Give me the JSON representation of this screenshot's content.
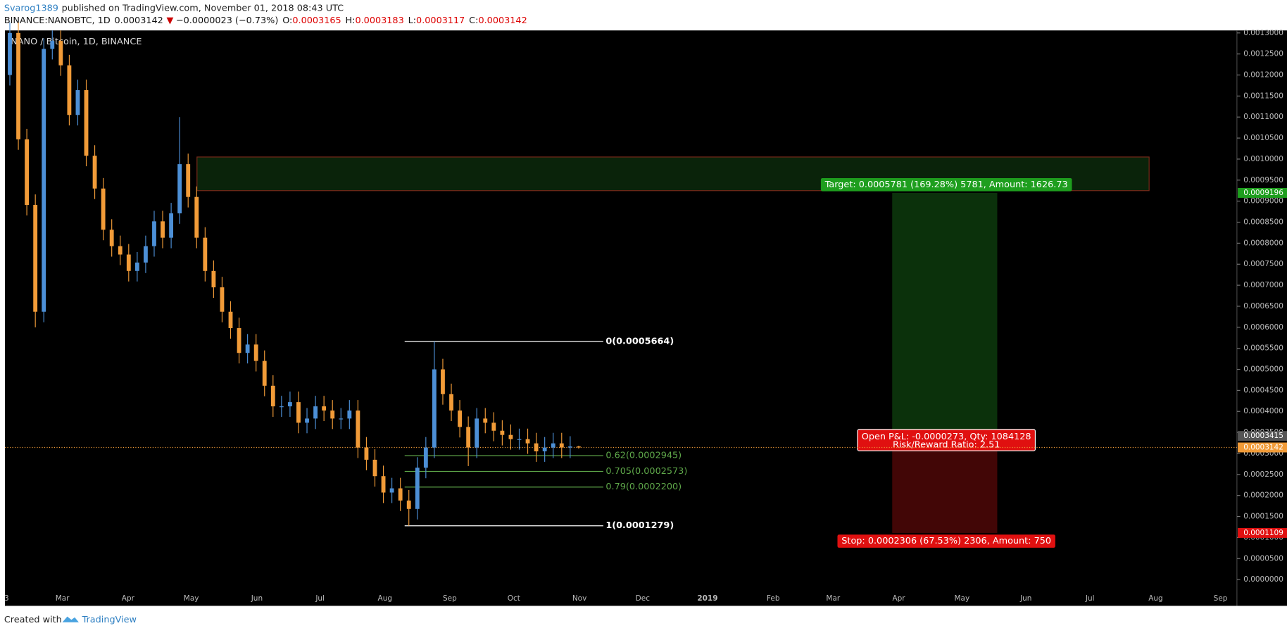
{
  "header": {
    "author": "Svarog1389",
    "published": "published on TradingView.com, November 01, 2018 08:43 UTC",
    "symbol": "BINANCE:NANOBTC, 1D",
    "last": "0.0003142",
    "change": "−0.0000023 (−0.73%)",
    "ohlc": [
      {
        "key": "O:",
        "value": "0.0003165"
      },
      {
        "key": "H:",
        "value": "0.0003183"
      },
      {
        "key": "L:",
        "value": "0.0003117"
      },
      {
        "key": "C:",
        "value": "0.0003142"
      }
    ]
  },
  "chart_data": {
    "type": "candlestick",
    "title": "NANO / Bitcoin, 1D, BINANCE",
    "up_color": "#4c8fd6",
    "down_color": "#f19b38",
    "candles": {
      "open": [
        0.0012,
        0.0013,
        0.001047,
        0.000891,
        0.000637,
        0.001262,
        0.001281,
        0.001223,
        0.001105,
        0.001164,
        0.001008,
        0.00093,
        0.000832,
        0.000793,
        0.000773,
        0.000734,
        0.000754,
        0.000793,
        0.000852,
        0.000813,
        0.000871,
        0.000988,
        0.00091,
        0.000813,
        0.000734,
        0.000695,
        0.000637,
        0.000598,
        0.000539,
        0.000559,
        0.00052,
        0.000461,
        0.000412,
        0.000412,
        0.000422,
        0.000373,
        0.000383,
        0.000412,
        0.000402,
        0.000383,
        0.000383,
        0.000402,
        0.000314,
        0.000285,
        0.000246,
        0.000207,
        0.000217,
        0.000188,
        0.000168,
        0.000266,
        0.000314,
        0.0005,
        0.000441,
        0.000402,
        0.000363,
        0.000314,
        0.000383,
        0.000373,
        0.000354,
        0.000344,
        0.000334,
        0.000334,
        0.000324,
        0.000305,
        0.000314,
        0.000324,
        0.000314,
        0.0003165
      ],
      "high": [
        0.001325,
        0.001325,
        0.001072,
        0.000916,
        0.001287,
        0.001306,
        0.001306,
        0.001248,
        0.001189,
        0.001189,
        0.001033,
        0.000955,
        0.000857,
        0.000818,
        0.000798,
        0.000779,
        0.000818,
        0.000877,
        0.000877,
        0.000896,
        0.0011,
        0.001013,
        0.000935,
        0.000838,
        0.000759,
        0.00072,
        0.000662,
        0.000623,
        0.000584,
        0.000584,
        0.000545,
        0.000486,
        0.000437,
        0.000447,
        0.000447,
        0.000408,
        0.000437,
        0.000437,
        0.000427,
        0.000408,
        0.000427,
        0.000427,
        0.000339,
        0.00031,
        0.000271,
        0.000242,
        0.000242,
        0.000213,
        0.000291,
        0.000339,
        0.0005664,
        0.000525,
        0.000466,
        0.000427,
        0.000388,
        0.000408,
        0.000408,
        0.000398,
        0.000379,
        0.000369,
        0.000359,
        0.000359,
        0.000349,
        0.000339,
        0.000349,
        0.000349,
        0.000341,
        0.0003183
      ],
      "low": [
        0.001175,
        0.001022,
        0.000866,
        0.0006,
        0.000612,
        0.001237,
        0.001198,
        0.00108,
        0.00108,
        0.000983,
        0.000905,
        0.000807,
        0.000768,
        0.000748,
        0.000709,
        0.000709,
        0.000729,
        0.000768,
        0.000788,
        0.000788,
        0.000846,
        0.000885,
        0.000788,
        0.000709,
        0.00067,
        0.000612,
        0.000573,
        0.000514,
        0.000514,
        0.000495,
        0.000436,
        0.000387,
        0.000387,
        0.000387,
        0.000348,
        0.000348,
        0.000358,
        0.000377,
        0.000358,
        0.000358,
        0.000358,
        0.000289,
        0.00026,
        0.000221,
        0.000182,
        0.000182,
        0.000163,
        0.0001279,
        0.000143,
        0.000241,
        0.000289,
        0.000416,
        0.000377,
        0.000338,
        0.00027,
        0.000289,
        0.000348,
        0.000329,
        0.000319,
        0.000309,
        0.000309,
        0.000299,
        0.00028,
        0.00028,
        0.000289,
        0.000289,
        0.000289,
        0.0003117
      ],
      "close": [
        0.0013,
        0.001047,
        0.000891,
        0.000637,
        0.001262,
        0.001281,
        0.001223,
        0.001105,
        0.001164,
        0.001008,
        0.00093,
        0.000832,
        0.000793,
        0.000773,
        0.000734,
        0.000754,
        0.000793,
        0.000852,
        0.000813,
        0.000871,
        0.000988,
        0.00091,
        0.000813,
        0.000734,
        0.000695,
        0.000637,
        0.000598,
        0.000539,
        0.000559,
        0.00052,
        0.000461,
        0.000412,
        0.000412,
        0.000422,
        0.000373,
        0.000383,
        0.000412,
        0.000402,
        0.000383,
        0.000383,
        0.000402,
        0.000314,
        0.000285,
        0.000246,
        0.000207,
        0.000217,
        0.000188,
        0.000168,
        0.000266,
        0.000314,
        0.0005,
        0.000441,
        0.000402,
        0.000363,
        0.000314,
        0.000383,
        0.000373,
        0.000354,
        0.000344,
        0.000334,
        0.000334,
        0.000324,
        0.000305,
        0.000314,
        0.000324,
        0.000314,
        0.0003165,
        0.0003142
      ]
    },
    "x_labels": [
      "3",
      "Mar",
      "Apr",
      "May",
      "Jun",
      "Jul",
      "Aug",
      "Sep",
      "Oct",
      "Nov",
      "Dec",
      "2019",
      "Feb",
      "Mar",
      "Apr",
      "May",
      "Jun",
      "Jul",
      "Aug",
      "Sep"
    ],
    "ylim": [
      -6.25e-05,
      0.001306
    ],
    "yticks": [
      {
        "value": 0,
        "label": "0.0000000"
      },
      {
        "value": 5e-05,
        "label": "0.0000500"
      },
      {
        "value": 0.0001,
        "label": "0.0001000"
      },
      {
        "value": 0.00015,
        "label": "0.0001500"
      },
      {
        "value": 0.0002,
        "label": "0.0002000"
      },
      {
        "value": 0.00025,
        "label": "0.0002500"
      },
      {
        "value": 0.0003,
        "label": "0.0003000"
      },
      {
        "value": 0.00035,
        "label": "0.0003500"
      },
      {
        "value": 0.0004,
        "label": "0.0004000"
      },
      {
        "value": 0.00045,
        "label": "0.0004500"
      },
      {
        "value": 0.0005,
        "label": "0.0005000"
      },
      {
        "value": 0.00055,
        "label": "0.0005500"
      },
      {
        "value": 0.0006,
        "label": "0.0006000"
      },
      {
        "value": 0.00065,
        "label": "0.0006500"
      },
      {
        "value": 0.0007,
        "label": "0.0007000"
      },
      {
        "value": 0.00075,
        "label": "0.0007500"
      },
      {
        "value": 0.0008,
        "label": "0.0008000"
      },
      {
        "value": 0.00085,
        "label": "0.0008500"
      },
      {
        "value": 0.0009,
        "label": "0.0009000"
      },
      {
        "value": 0.00095,
        "label": "0.0009500"
      },
      {
        "value": 0.001,
        "label": "0.0010000"
      },
      {
        "value": 0.00105,
        "label": "0.0010500"
      },
      {
        "value": 0.0011,
        "label": "0.0011000"
      },
      {
        "value": 0.00115,
        "label": "0.0011500"
      },
      {
        "value": 0.0012,
        "label": "0.0012000"
      },
      {
        "value": 0.00125,
        "label": "0.0012500"
      },
      {
        "value": 0.0013,
        "label": "0.0013000"
      }
    ],
    "grid": false,
    "current_price": 0.0003142,
    "current_price_color": "#f19b38",
    "price_tags": [
      {
        "value": 0.0009196,
        "label": "0.0009196",
        "color": "#1e9e1e"
      },
      {
        "value": 0.0003415,
        "label": "0.0003415",
        "color": "#555555"
      },
      {
        "value": 0.0003142,
        "label": "0.0003142",
        "color": "#f19b38"
      },
      {
        "value": 0.0001109,
        "label": "0.0001109",
        "color": "#e01010"
      }
    ],
    "zone": {
      "top": 0.001005,
      "bottom": 0.000925
    },
    "fib": [
      {
        "price": 0.0005664,
        "label": "0(0.0005664)",
        "color": "#ffffff"
      },
      {
        "price": 0.0002945,
        "label": "0.62(0.0002945)",
        "color": "#5fa84a"
      },
      {
        "price": 0.0002573,
        "label": "0.705(0.0002573)",
        "color": "#5fa84a"
      },
      {
        "price": 0.00022,
        "label": "0.79(0.0002200)",
        "color": "#5fa84a"
      },
      {
        "price": 0.0001279,
        "label": "1(0.0001279)",
        "color": "#ffffff"
      }
    ],
    "position": {
      "entry": 0.0003415,
      "target": 0.0009196,
      "stop": 0.0001109,
      "target_label": "Target: 0.0005781 (169.28%) 5781, Amount: 1626.73",
      "pnl_label": "Open P&L: -0.0000273, Qty: 1084128",
      "ratio_label": "Risk/Reward Ratio: 2.51",
      "stop_label": "Stop: 0.0002306 (67.53%) 2306, Amount: 750"
    }
  },
  "footer": {
    "created": "Created with",
    "brand": "TradingView"
  }
}
